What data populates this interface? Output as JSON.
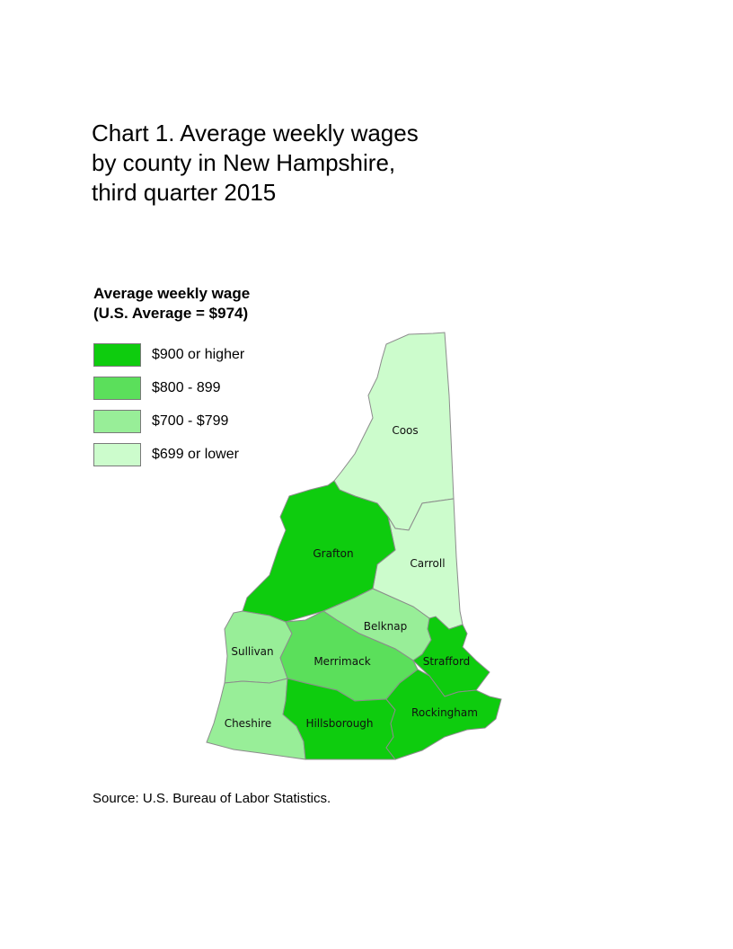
{
  "title_lines": [
    "Chart 1. Average weekly wages",
    "by county in New Hampshire,",
    "third quarter 2015"
  ],
  "legend": {
    "title_lines": [
      "Average weekly wage",
      "(U.S. Average = $974)"
    ],
    "items": [
      {
        "label": "$900 or higher",
        "color": "#0ecc0e"
      },
      {
        "label": "$800 - 899",
        "color": "#5bdf5b"
      },
      {
        "label": "$700 - $799",
        "color": "#98ee98"
      },
      {
        "label": "$699 or lower",
        "color": "#ccfccc"
      }
    ]
  },
  "counties": [
    {
      "name": "Coos",
      "bracket": 3
    },
    {
      "name": "Carroll",
      "bracket": 3
    },
    {
      "name": "Grafton",
      "bracket": 0
    },
    {
      "name": "Belknap",
      "bracket": 2
    },
    {
      "name": "Sullivan",
      "bracket": 2
    },
    {
      "name": "Merrimack",
      "bracket": 1
    },
    {
      "name": "Strafford",
      "bracket": 0
    },
    {
      "name": "Cheshire",
      "bracket": 2
    },
    {
      "name": "Hillsborough",
      "bracket": 0
    },
    {
      "name": "Rockingham",
      "bracket": 0
    }
  ],
  "source": "Source: U.S. Bureau of Labor Statistics."
}
